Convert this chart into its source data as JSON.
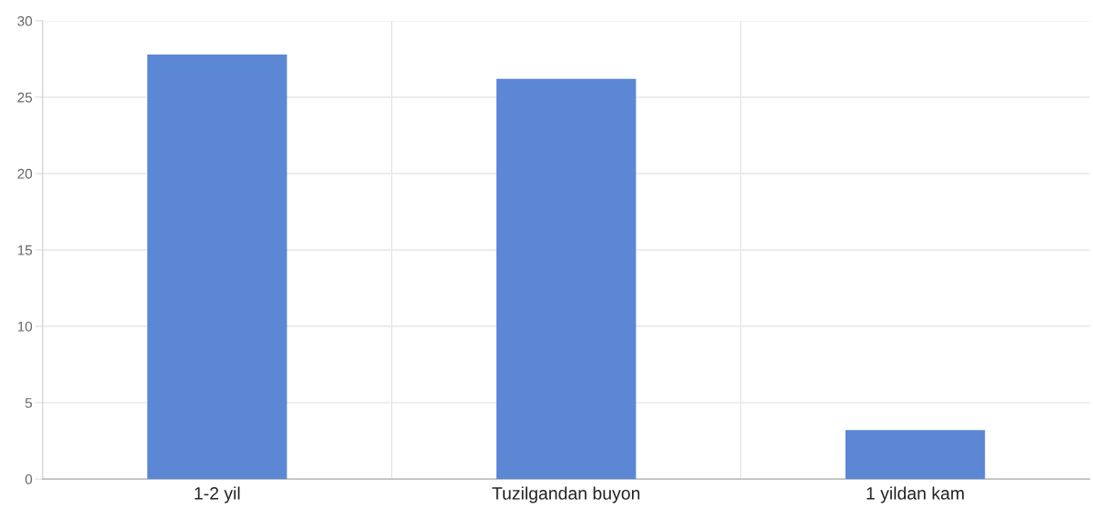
{
  "chart_data": {
    "type": "bar",
    "categories": [
      "1-2 yil",
      "Tuzilgandan buyon",
      "1 yildan kam"
    ],
    "values": [
      27.8,
      26.2,
      3.2
    ],
    "color": "#5b87d5",
    "ylim": [
      0,
      30
    ],
    "yticks": [
      0,
      5,
      10,
      15,
      20,
      25,
      30
    ],
    "grid": true
  }
}
